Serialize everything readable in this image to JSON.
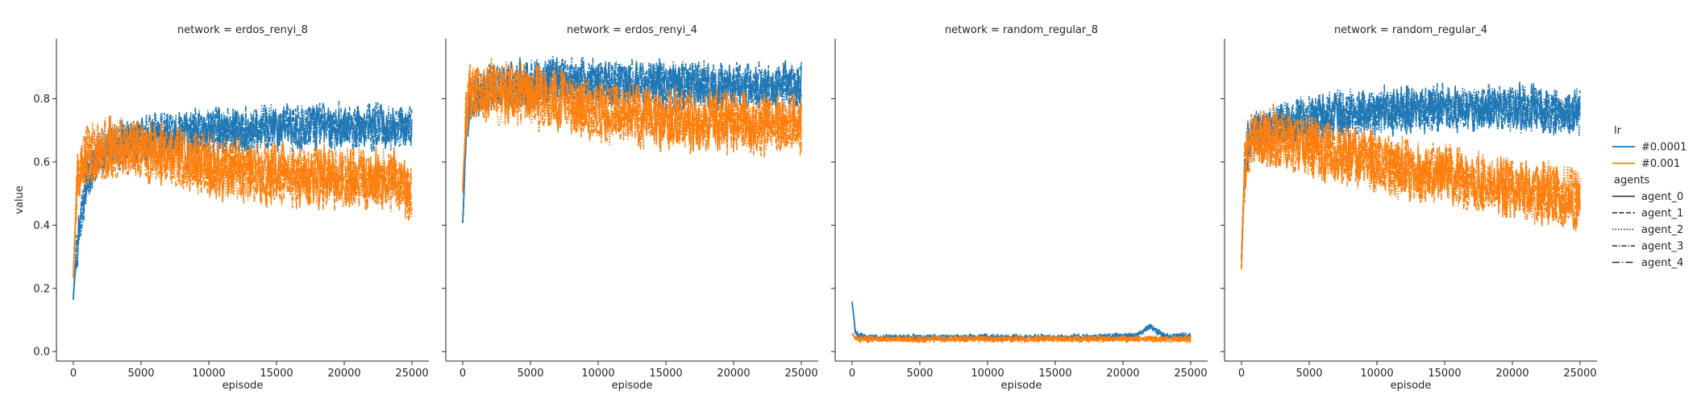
{
  "chart_data": [
    {
      "type": "line",
      "title": "network = erdos_renyi_8",
      "xlabel": "episode",
      "ylabel": "value",
      "xlim": [
        -1250,
        26250
      ],
      "ylim": [
        -0.03,
        0.99
      ],
      "xticks": [
        0,
        5000,
        10000,
        15000,
        20000,
        25000
      ],
      "xtick_labels": [
        "0",
        "5000",
        "10000",
        "15000",
        "20000",
        "25000"
      ],
      "yticks": [
        0.0,
        0.2,
        0.4,
        0.6,
        0.8
      ],
      "ytick_labels": [
        "0.0",
        "0.2",
        "0.4",
        "0.6",
        "0.8"
      ],
      "grid": false,
      "series": [
        {
          "name": "#0.0001",
          "color": "#1f77b4",
          "x": [
            0,
            250,
            500,
            750,
            1000,
            1500,
            2000,
            3000,
            4000,
            5000,
            6000,
            7000,
            8000,
            9000,
            10000,
            11000,
            12000,
            13000,
            14000,
            15000,
            16000,
            17000,
            18000,
            19000,
            20000,
            21000,
            22000,
            23000,
            24000,
            25000
          ],
          "y": [
            0.18,
            0.32,
            0.4,
            0.48,
            0.55,
            0.6,
            0.63,
            0.65,
            0.66,
            0.67,
            0.68,
            0.68,
            0.69,
            0.69,
            0.7,
            0.7,
            0.7,
            0.7,
            0.71,
            0.71,
            0.71,
            0.71,
            0.71,
            0.71,
            0.71,
            0.71,
            0.71,
            0.71,
            0.71,
            0.71
          ]
        },
        {
          "name": "#0.001",
          "color": "#ff7f0e",
          "x": [
            0,
            250,
            500,
            750,
            1000,
            1500,
            2000,
            3000,
            4000,
            5000,
            6000,
            7000,
            8000,
            9000,
            10000,
            11000,
            12000,
            13000,
            14000,
            15000,
            16000,
            17000,
            18000,
            19000,
            20000,
            21000,
            22000,
            23000,
            24000,
            25000
          ],
          "y": [
            0.25,
            0.5,
            0.58,
            0.6,
            0.62,
            0.63,
            0.64,
            0.64,
            0.64,
            0.64,
            0.63,
            0.62,
            0.61,
            0.6,
            0.59,
            0.58,
            0.57,
            0.57,
            0.56,
            0.56,
            0.56,
            0.55,
            0.55,
            0.55,
            0.55,
            0.55,
            0.54,
            0.54,
            0.54,
            0.5
          ]
        }
      ]
    },
    {
      "type": "line",
      "title": "network = erdos_renyi_4",
      "xlabel": "episode",
      "ylabel": "",
      "xlim": [
        -1250,
        26250
      ],
      "ylim": [
        -0.03,
        0.99
      ],
      "xticks": [
        0,
        5000,
        10000,
        15000,
        20000,
        25000
      ],
      "xtick_labels": [
        "0",
        "5000",
        "10000",
        "15000",
        "20000",
        "25000"
      ],
      "yticks": [
        0.0,
        0.2,
        0.4,
        0.6,
        0.8
      ],
      "grid": false,
      "series": [
        {
          "name": "#0.0001",
          "color": "#1f77b4",
          "x": [
            0,
            250,
            500,
            750,
            1000,
            1500,
            2000,
            3000,
            4000,
            5000,
            6000,
            7000,
            8000,
            9000,
            10000,
            11000,
            12000,
            13000,
            14000,
            15000,
            16000,
            17000,
            18000,
            19000,
            20000,
            21000,
            22000,
            23000,
            24000,
            25000
          ],
          "y": [
            0.4,
            0.7,
            0.78,
            0.8,
            0.81,
            0.82,
            0.83,
            0.84,
            0.85,
            0.85,
            0.85,
            0.86,
            0.86,
            0.86,
            0.85,
            0.85,
            0.85,
            0.85,
            0.85,
            0.85,
            0.84,
            0.84,
            0.84,
            0.84,
            0.84,
            0.84,
            0.84,
            0.84,
            0.84,
            0.84
          ]
        },
        {
          "name": "#0.001",
          "color": "#ff7f0e",
          "x": [
            0,
            250,
            500,
            750,
            1000,
            1500,
            2000,
            3000,
            4000,
            5000,
            6000,
            7000,
            8000,
            9000,
            10000,
            11000,
            12000,
            13000,
            14000,
            15000,
            16000,
            17000,
            18000,
            19000,
            20000,
            21000,
            22000,
            23000,
            24000,
            25000
          ],
          "y": [
            0.5,
            0.75,
            0.8,
            0.81,
            0.82,
            0.82,
            0.82,
            0.82,
            0.82,
            0.81,
            0.8,
            0.79,
            0.78,
            0.77,
            0.76,
            0.76,
            0.75,
            0.75,
            0.74,
            0.74,
            0.74,
            0.73,
            0.73,
            0.73,
            0.73,
            0.72,
            0.72,
            0.72,
            0.72,
            0.72
          ]
        }
      ]
    },
    {
      "type": "line",
      "title": "network = random_regular_8",
      "xlabel": "episode",
      "ylabel": "",
      "xlim": [
        -1250,
        26250
      ],
      "ylim": [
        -0.03,
        0.99
      ],
      "xticks": [
        0,
        5000,
        10000,
        15000,
        20000,
        25000
      ],
      "xtick_labels": [
        "0",
        "5000",
        "10000",
        "15000",
        "20000",
        "25000"
      ],
      "yticks": [
        0.0,
        0.2,
        0.4,
        0.6,
        0.8
      ],
      "grid": false,
      "series": [
        {
          "name": "#0.0001",
          "color": "#1f77b4",
          "x": [
            0,
            250,
            500,
            750,
            1000,
            1500,
            2000,
            3000,
            4000,
            5000,
            6000,
            7000,
            8000,
            9000,
            10000,
            11000,
            12000,
            13000,
            14000,
            15000,
            16000,
            17000,
            18000,
            19000,
            20000,
            21000,
            22000,
            23000,
            24000,
            25000
          ],
          "y": [
            0.16,
            0.06,
            0.05,
            0.05,
            0.045,
            0.045,
            0.045,
            0.045,
            0.045,
            0.045,
            0.045,
            0.045,
            0.045,
            0.045,
            0.045,
            0.045,
            0.045,
            0.045,
            0.045,
            0.045,
            0.045,
            0.045,
            0.045,
            0.048,
            0.048,
            0.05,
            0.08,
            0.05,
            0.05,
            0.05
          ]
        },
        {
          "name": "#0.001",
          "color": "#ff7f0e",
          "x": [
            0,
            250,
            500,
            750,
            1000,
            1500,
            2000,
            3000,
            4000,
            5000,
            6000,
            7000,
            8000,
            9000,
            10000,
            11000,
            12000,
            13000,
            14000,
            15000,
            16000,
            17000,
            18000,
            19000,
            20000,
            21000,
            22000,
            23000,
            24000,
            25000
          ],
          "y": [
            0.06,
            0.04,
            0.04,
            0.04,
            0.04,
            0.04,
            0.04,
            0.04,
            0.04,
            0.04,
            0.04,
            0.04,
            0.04,
            0.04,
            0.04,
            0.04,
            0.04,
            0.04,
            0.04,
            0.04,
            0.04,
            0.04,
            0.04,
            0.04,
            0.04,
            0.04,
            0.04,
            0.04,
            0.04,
            0.04
          ]
        }
      ]
    },
    {
      "type": "line",
      "title": "network = random_regular_4",
      "xlabel": "episode",
      "ylabel": "",
      "xlim": [
        -1250,
        26250
      ],
      "ylim": [
        -0.03,
        0.99
      ],
      "xticks": [
        0,
        5000,
        10000,
        15000,
        20000,
        25000
      ],
      "xtick_labels": [
        "0",
        "5000",
        "10000",
        "15000",
        "20000",
        "25000"
      ],
      "yticks": [
        0.0,
        0.2,
        0.4,
        0.6,
        0.8
      ],
      "grid": false,
      "series": [
        {
          "name": "#0.0001",
          "color": "#1f77b4",
          "x": [
            0,
            250,
            500,
            750,
            1000,
            1500,
            2000,
            3000,
            4000,
            5000,
            6000,
            7000,
            8000,
            9000,
            10000,
            11000,
            12000,
            13000,
            14000,
            15000,
            16000,
            17000,
            18000,
            19000,
            20000,
            21000,
            22000,
            23000,
            24000,
            25000
          ],
          "y": [
            0.3,
            0.6,
            0.66,
            0.68,
            0.69,
            0.7,
            0.7,
            0.71,
            0.72,
            0.73,
            0.74,
            0.75,
            0.75,
            0.76,
            0.76,
            0.76,
            0.76,
            0.76,
            0.77,
            0.77,
            0.77,
            0.77,
            0.77,
            0.77,
            0.77,
            0.77,
            0.77,
            0.76,
            0.76,
            0.76
          ]
        },
        {
          "name": "#0.001",
          "color": "#ff7f0e",
          "x": [
            0,
            250,
            500,
            750,
            1000,
            1500,
            2000,
            3000,
            4000,
            5000,
            6000,
            7000,
            8000,
            9000,
            10000,
            11000,
            12000,
            13000,
            14000,
            15000,
            16000,
            17000,
            18000,
            19000,
            20000,
            21000,
            22000,
            23000,
            24000,
            25000
          ],
          "y": [
            0.27,
            0.6,
            0.65,
            0.67,
            0.68,
            0.68,
            0.68,
            0.67,
            0.66,
            0.65,
            0.64,
            0.63,
            0.62,
            0.61,
            0.6,
            0.59,
            0.58,
            0.57,
            0.56,
            0.56,
            0.55,
            0.54,
            0.53,
            0.52,
            0.52,
            0.51,
            0.5,
            0.5,
            0.49,
            0.48
          ]
        }
      ]
    }
  ],
  "legend": {
    "lr_title": "lr",
    "lr_entries": [
      {
        "label": "#0.0001",
        "color": "#1f77b4"
      },
      {
        "label": "#0.001",
        "color": "#ff7f0e"
      }
    ],
    "agents_title": "agents",
    "agents_entries": [
      {
        "label": "agent_0",
        "style": "solid"
      },
      {
        "label": "agent_1",
        "style": "dashed"
      },
      {
        "label": "agent_2",
        "style": "dotted"
      },
      {
        "label": "agent_3",
        "style": "dashdot"
      },
      {
        "label": "agent_4",
        "style": "loosedashdot"
      }
    ]
  }
}
